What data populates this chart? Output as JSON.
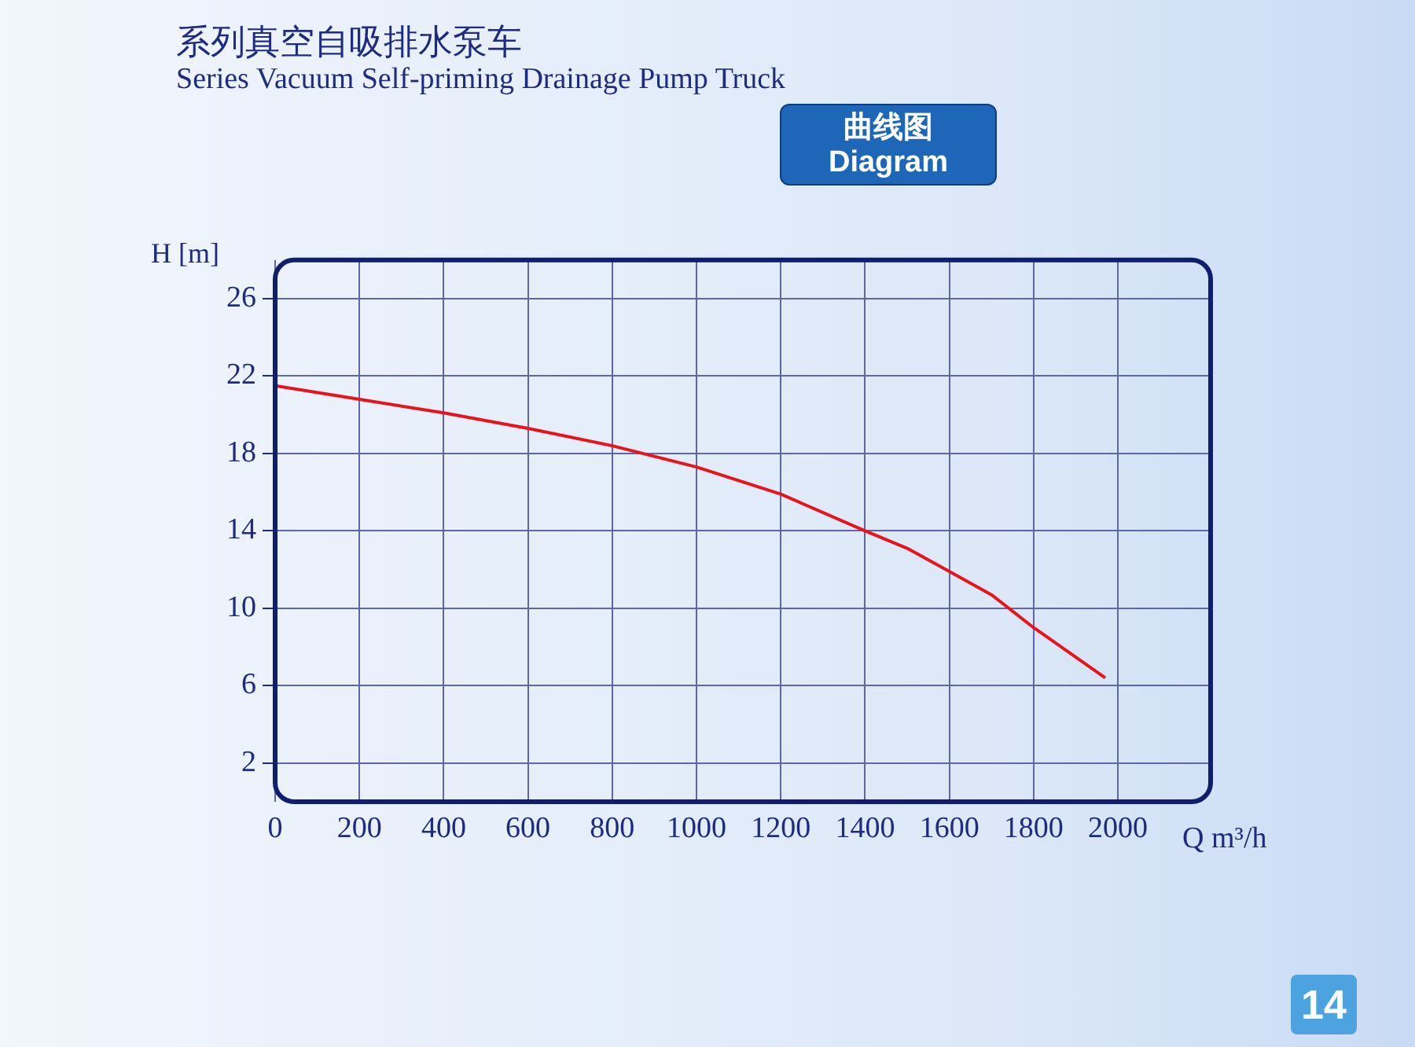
{
  "chart_data": {
    "type": "line",
    "title": "系列真空自吸排水泵车",
    "subtitle": "Series Vacuum Self-priming Drainage Pump Truck",
    "annotations": [
      "曲线图",
      "Diagram",
      "14"
    ],
    "xlabel": "Q m³/h",
    "ylabel": "H [m]",
    "x": [
      0,
      200,
      400,
      600,
      800,
      1000,
      1200,
      1400,
      1500,
      1600,
      1700,
      1800,
      1970
    ],
    "series": [
      {
        "color": "#e8141c",
        "values": [
          21.5,
          20.8,
          20.1,
          19.3,
          18.4,
          17.3,
          15.9,
          14.0,
          13.1,
          11.9,
          10.7,
          9.0,
          6.4
        ]
      }
    ],
    "xlim": [
      0,
      2220
    ],
    "xticks": [
      0,
      200,
      400,
      600,
      800,
      1000,
      1200,
      1400,
      1600,
      1800,
      2000
    ],
    "ylim": [
      0,
      28
    ],
    "yticks": [
      2,
      6,
      10,
      14,
      18,
      22,
      26
    ],
    "grid": true,
    "legend": false,
    "marker": "none",
    "line_style": "solid"
  }
}
